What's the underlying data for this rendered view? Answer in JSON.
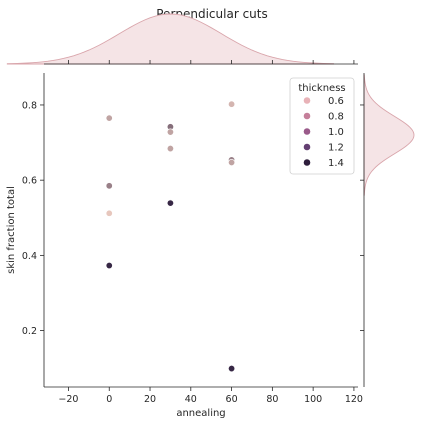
{
  "chart_data": {
    "type": "scatter",
    "title": "Perpendicular cuts",
    "xlabel": "annealing",
    "ylabel": "skin fraction total",
    "xlim": [
      -32,
      122
    ],
    "ylim": [
      0.05,
      0.885
    ],
    "x_ticks": [
      -20,
      0,
      20,
      40,
      60,
      80,
      100,
      120
    ],
    "y_ticks": [
      0.2,
      0.4,
      0.6,
      0.8
    ],
    "grid": false,
    "legend": {
      "title": "thickness",
      "placement": "top-right",
      "entries": [
        {
          "label": "0.6",
          "value": 0.6,
          "color": "#e8b2b7"
        },
        {
          "label": "0.8",
          "value": 0.8,
          "color": "#c57f9a"
        },
        {
          "label": "1.0",
          "value": 1.0,
          "color": "#9a5a8a"
        },
        {
          "label": "1.2",
          "value": 1.2,
          "color": "#643f72"
        },
        {
          "label": "1.4",
          "value": 1.4,
          "color": "#2e1e3c"
        }
      ]
    },
    "hue_range": [
      0.45,
      1.45
    ],
    "color_low": "#f1d0c4",
    "color_high": "#2d1e3e",
    "points": [
      {
        "x": 0,
        "y": 0.765,
        "thickness": 0.7
      },
      {
        "x": 0,
        "y": 0.585,
        "thickness": 0.9
      },
      {
        "x": 0,
        "y": 0.512,
        "thickness": 0.5
      },
      {
        "x": 0,
        "y": 0.373,
        "thickness": 1.4
      },
      {
        "x": 30,
        "y": 0.742,
        "thickness": 1.0
      },
      {
        "x": 30,
        "y": 0.728,
        "thickness": 0.7
      },
      {
        "x": 30,
        "y": 0.684,
        "thickness": 0.7
      },
      {
        "x": 30,
        "y": 0.539,
        "thickness": 1.4
      },
      {
        "x": 60,
        "y": 0.802,
        "thickness": 0.6
      },
      {
        "x": 60,
        "y": 0.654,
        "thickness": 0.9
      },
      {
        "x": 60,
        "y": 0.647,
        "thickness": 0.7
      },
      {
        "x": 60,
        "y": 0.099,
        "thickness": 1.4
      }
    ],
    "marginal_x": {
      "mean": 30,
      "sd": 25
    },
    "marginal_y": {
      "mean": 0.72,
      "sd": 0.05
    },
    "marginal_color": "#f5e4e6",
    "marginal_stroke": "#d9a5ab"
  }
}
